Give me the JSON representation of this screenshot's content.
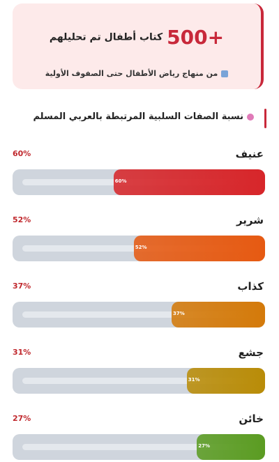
{
  "header": {
    "count": "+500",
    "title": "كتاب أطفال تم تحليلهم",
    "subtitle": "من منهاج رياض الأطفال حتى الصفوف الأولية"
  },
  "chart_data": {
    "type": "bar",
    "orientation": "horizontal",
    "title": "نسبة الصفات السلبية المرتبطة بالعربي المسلم",
    "categories": [
      "عنيف",
      "شرير",
      "كذاب",
      "جشع",
      "خائن"
    ],
    "values": [
      60,
      52,
      37,
      31,
      27
    ],
    "value_labels": [
      "60%",
      "52%",
      "37%",
      "31%",
      "27%"
    ],
    "colors": [
      "#d7262a",
      "#e65a12",
      "#d47a0a",
      "#b98c08",
      "#5b9c22"
    ],
    "xlim": [
      0,
      100
    ]
  }
}
